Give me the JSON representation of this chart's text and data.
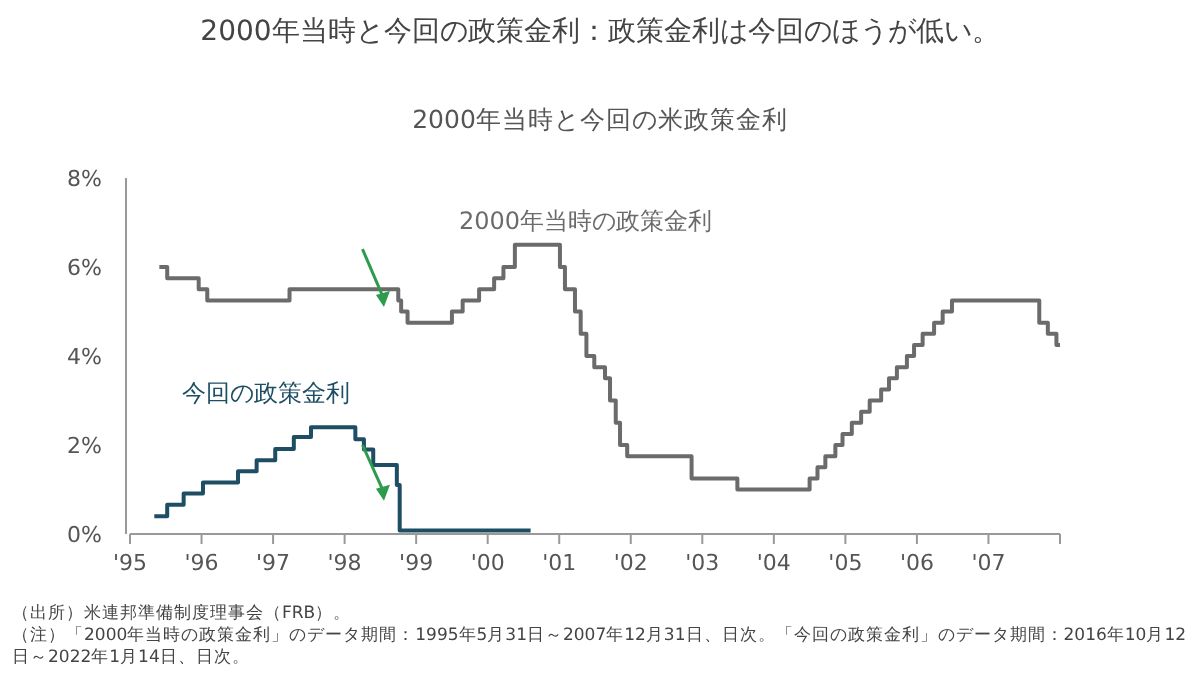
{
  "chart_data": {
    "type": "step",
    "title": "2000年当時と今回の政策金利：政策金利は今回のほうが低い。",
    "subtitle": "2000年当時と今回の米政策金利",
    "xlim": [
      1995,
      2008
    ],
    "ylim": [
      0,
      8
    ],
    "xticks": [
      {
        "value": 1995,
        "label": "'95"
      },
      {
        "value": 1996,
        "label": "'96"
      },
      {
        "value": 1997,
        "label": "'97"
      },
      {
        "value": 1998,
        "label": "'98"
      },
      {
        "value": 1999,
        "label": "'99"
      },
      {
        "value": 2000,
        "label": "'00"
      },
      {
        "value": 2001,
        "label": "'01"
      },
      {
        "value": 2002,
        "label": "'02"
      },
      {
        "value": 2003,
        "label": "'03"
      },
      {
        "value": 2004,
        "label": "'04"
      },
      {
        "value": 2005,
        "label": "'05"
      },
      {
        "value": 2006,
        "label": "'06"
      },
      {
        "value": 2007,
        "label": "'07"
      },
      {
        "value": 2008,
        "label": null
      }
    ],
    "yticks": [
      {
        "value": 0,
        "label": "0%"
      },
      {
        "value": 2,
        "label": "2%"
      },
      {
        "value": 4,
        "label": "4%"
      },
      {
        "value": 6,
        "label": "6%"
      },
      {
        "value": 8,
        "label": "8%"
      }
    ],
    "grid": false,
    "legend": false,
    "series": [
      {
        "name": "2000年当時の政策金利",
        "color": "#6b6b6b",
        "x": [
          1995.41,
          1995.52,
          1995.96,
          1996.08,
          1997.23,
          1998.75,
          1998.79,
          1998.88,
          1999.5,
          1999.65,
          1999.88,
          2000.09,
          2000.22,
          2000.38,
          2001.01,
          2001.08,
          2001.22,
          2001.3,
          2001.38,
          2001.49,
          2001.64,
          2001.71,
          2001.79,
          2001.85,
          2001.95,
          2002.85,
          2003.49,
          2004.5,
          2004.61,
          2004.72,
          2004.86,
          2004.96,
          2005.09,
          2005.22,
          2005.34,
          2005.5,
          2005.61,
          2005.72,
          2005.86,
          2005.96,
          2006.08,
          2006.24,
          2006.36,
          2006.49,
          2007.71,
          2007.83,
          2007.95,
          2008.0
        ],
        "values": [
          6,
          5.75,
          5.5,
          5.25,
          5.5,
          5.25,
          5,
          4.75,
          5,
          5.25,
          5.5,
          5.75,
          6,
          6.5,
          6,
          5.5,
          5,
          4.5,
          4,
          3.75,
          3.5,
          3,
          2.5,
          2,
          1.75,
          1.25,
          1,
          1.25,
          1.5,
          1.75,
          2,
          2.25,
          2.5,
          2.75,
          3,
          3.25,
          3.5,
          3.75,
          4,
          4.25,
          4.5,
          4.75,
          5,
          5.25,
          4.75,
          4.5,
          4.25,
          4.25
        ]
      },
      {
        "name": "今回の政策金利",
        "color": "#1d4e63",
        "x": [
          1995.34,
          1995.52,
          1995.75,
          1996.02,
          1996.51,
          1996.77,
          1997.03,
          1997.29,
          1997.53,
          1998.15,
          1998.27,
          1998.4,
          1998.73,
          1998.77,
          2000.6
        ],
        "values": [
          0.4,
          0.66,
          0.91,
          1.16,
          1.41,
          1.66,
          1.91,
          2.18,
          2.4,
          2.13,
          1.9,
          1.55,
          1.1,
          0.08,
          0.08
        ]
      }
    ],
    "annotations": [
      "（出所）米連邦準備制度理事会（FRB）。",
      "（注）「2000年当時の政策金利」のデータ期間：1995年5月31日～2007年12月31日、日次。「今回の政策金利」のデータ期間：2016年10月12日～2022年1月14日、日次。"
    ]
  }
}
